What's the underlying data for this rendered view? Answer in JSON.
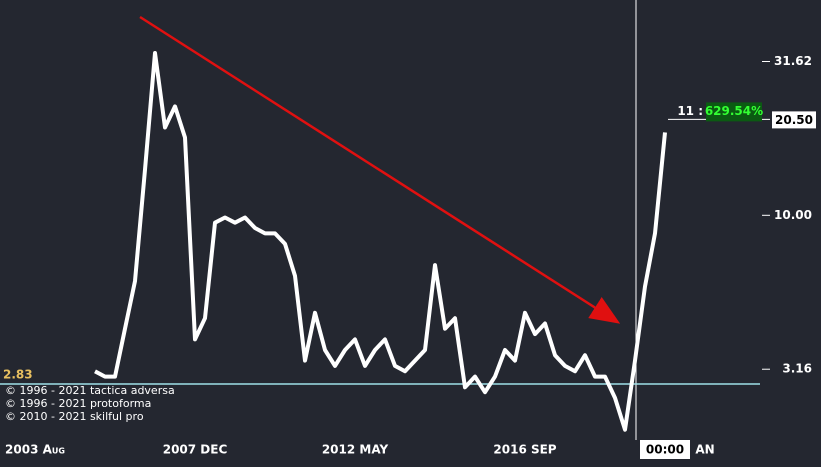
{
  "chart_data": {
    "type": "line",
    "log_scale": true,
    "background": "#242730",
    "categories": [
      null,
      null,
      null,
      "2003 Aug",
      null,
      null,
      null,
      null,
      null,
      null,
      null,
      null,
      null,
      null,
      null,
      null,
      null,
      null,
      null,
      "2007 DEC",
      null,
      null,
      null,
      null,
      null,
      null,
      null,
      null,
      null,
      null,
      null,
      null,
      null,
      null,
      null,
      "2012 MAY",
      null,
      null,
      null,
      null,
      null,
      null,
      null,
      null,
      null,
      null,
      null,
      null,
      null,
      null,
      null,
      null,
      "2016 SEP",
      null,
      null,
      null,
      null,
      null,
      null,
      null,
      null,
      null,
      null,
      null,
      null,
      null,
      "00:00",
      null,
      null,
      null,
      "AN",
      null,
      null,
      null,
      null,
      null
    ],
    "series": [
      {
        "color": "#ffffff",
        "values": [
          null,
          null,
          null,
          null,
          null,
          null,
          null,
          null,
          null,
          3.11,
          2.99,
          2.99,
          4.28,
          6.11,
          14.07,
          33.7,
          19.3,
          22.6,
          17.9,
          3.95,
          4.63,
          9.46,
          9.84,
          9.46,
          9.84,
          9.09,
          8.73,
          8.73,
          8.07,
          6.36,
          3.37,
          4.82,
          3.65,
          3.24,
          3.65,
          3.95,
          3.24,
          3.65,
          3.95,
          3.24,
          3.11,
          3.37,
          3.65,
          6.89,
          4.28,
          4.63,
          2.76,
          2.99,
          2.66,
          2.99,
          3.65,
          3.37,
          4.82,
          4.11,
          4.45,
          3.51,
          3.24,
          3.11,
          3.51,
          2.99,
          2.99,
          2.55,
          2.01,
          3.37,
          5.87,
          8.73,
          18.6,
          null,
          null,
          null,
          null,
          null,
          null,
          null,
          null,
          null
        ]
      }
    ],
    "ylim": [
      1.52,
      50.1
    ],
    "yticks": [
      {
        "value": 31.62,
        "label": "31.62"
      },
      {
        "value": 10,
        "label": "10.00"
      },
      {
        "value": 3.16,
        "label": "3.16"
      }
    ],
    "hline": {
      "value": 2.83,
      "label": "2.83",
      "color": "#9fe0e8"
    },
    "last_price": {
      "value": 20.5,
      "label": "20.50"
    },
    "annotation": {
      "prefix": "11 :",
      "text": "629.54%"
    },
    "copyright": [
      "© 1996 - 2021 tactica adversa",
      "© 1996 - 2021 protoforma",
      "© 2010 - 2021 skilful pro"
    ]
  }
}
